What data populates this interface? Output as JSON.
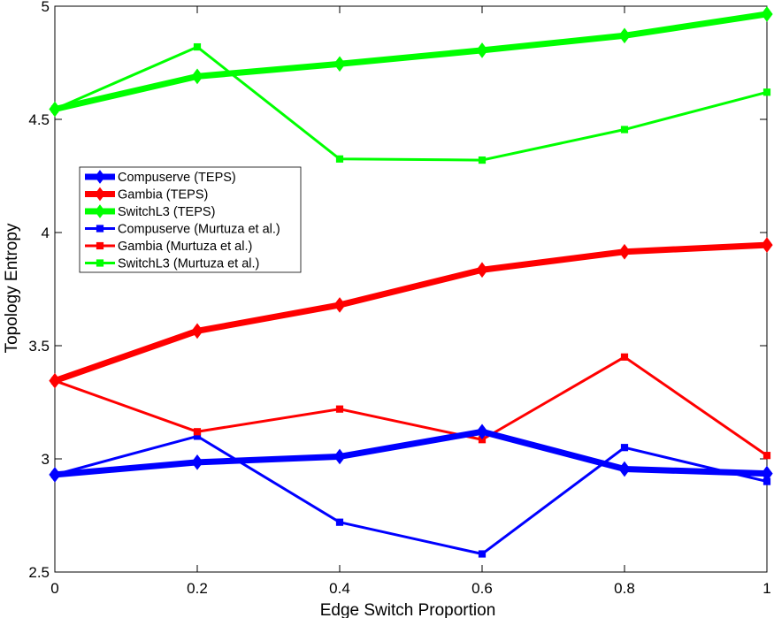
{
  "chart_data": {
    "type": "line",
    "title": "",
    "xlabel": "Edge Switch Proportion",
    "ylabel": "Topology Entropy",
    "xlim": [
      0,
      1
    ],
    "ylim": [
      2.5,
      5
    ],
    "x": [
      0,
      0.2,
      0.4,
      0.6,
      0.8,
      1
    ],
    "x_tick_labels": [
      "0",
      "0.2",
      "0.4",
      "0.6",
      "0.8",
      "1"
    ],
    "y_ticks": [
      2.5,
      3,
      3.5,
      4,
      4.5,
      5
    ],
    "y_tick_labels": [
      "2.5",
      "3",
      "3.5",
      "4",
      "4.5",
      "5"
    ],
    "legend_position": "left",
    "series": [
      {
        "name": "Compuserve (TEPS)",
        "color": "#0000ff",
        "style": "thick",
        "marker": "diamond",
        "values": [
          2.93,
          2.985,
          3.01,
          3.12,
          2.955,
          2.935
        ]
      },
      {
        "name": "Gambia (TEPS)",
        "color": "#ff0000",
        "style": "thick",
        "marker": "diamond",
        "values": [
          3.345,
          3.565,
          3.68,
          3.835,
          3.915,
          3.945
        ]
      },
      {
        "name": "SwitchL3 (TEPS)",
        "color": "#00ff00",
        "style": "thick",
        "marker": "diamond",
        "values": [
          4.545,
          4.69,
          4.745,
          4.805,
          4.87,
          4.965
        ]
      },
      {
        "name": "Compuserve (Murtuza et al.)",
        "color": "#0000ff",
        "style": "thin",
        "marker": "square",
        "values": [
          2.93,
          3.1,
          2.72,
          2.58,
          3.05,
          2.9
        ]
      },
      {
        "name": "Gambia (Murtuza et al.)",
        "color": "#ff0000",
        "style": "thin",
        "marker": "square",
        "values": [
          3.345,
          3.12,
          3.22,
          3.085,
          3.45,
          3.015
        ]
      },
      {
        "name": "SwitchL3 (Murtuza et al.)",
        "color": "#00ff00",
        "style": "thin",
        "marker": "square",
        "values": [
          4.545,
          4.82,
          4.325,
          4.32,
          4.455,
          4.62
        ]
      }
    ]
  }
}
